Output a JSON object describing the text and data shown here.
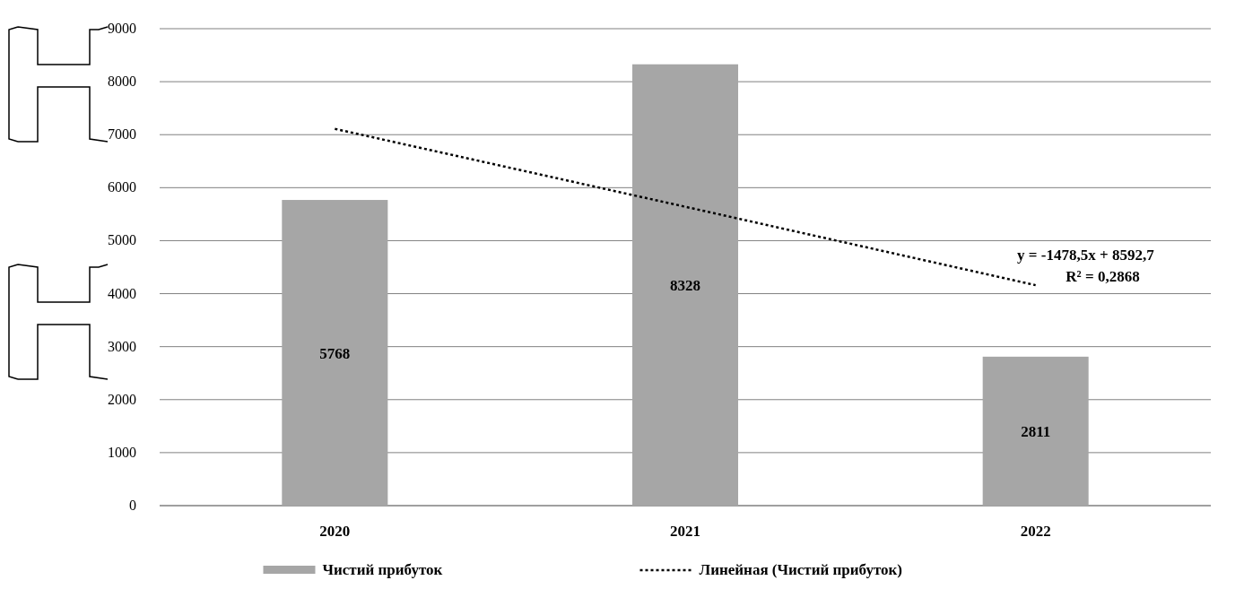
{
  "chart_data": {
    "type": "bar",
    "categories": [
      "2020",
      "2021",
      "2022"
    ],
    "series": [
      {
        "name": "Чистий прибуток",
        "color": "#a6a6a6",
        "values": [
          5768,
          8328,
          2811
        ],
        "value_labels": [
          "5768",
          "8328",
          "2811"
        ]
      },
      {
        "name": "Линейная (Чистий прибуток)",
        "type": "line",
        "color": "#000000",
        "line_style": "dotted",
        "marker": "none",
        "values": [
          7110,
          5640,
          4160
        ]
      }
    ],
    "ylim": [
      0,
      9000
    ],
    "yticks": [
      0,
      1000,
      2000,
      3000,
      4000,
      5000,
      6000,
      7000,
      8000,
      9000
    ],
    "grid": "y",
    "legend": "bottom",
    "annotations": [
      "y = -1478,5x + 8592,7",
      "R² = 0,2868"
    ]
  }
}
